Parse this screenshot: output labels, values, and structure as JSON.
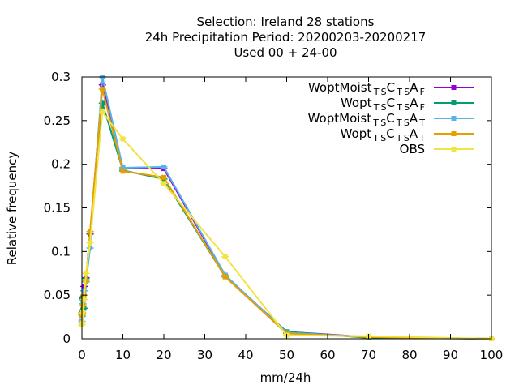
{
  "chart_data": {
    "type": "line",
    "title_lines": [
      "Selection: Ireland      28 stations",
      "24h Precipitation  Period: 20200203-20200217",
      "Used  00 + 24-00"
    ],
    "xlabel": "mm/24h",
    "ylabel": "Relative frequency",
    "xlim": [
      0,
      100
    ],
    "ylim": [
      0,
      0.3
    ],
    "xticks": [
      0,
      10,
      20,
      30,
      40,
      50,
      60,
      70,
      80,
      90,
      100
    ],
    "yticks": [
      0,
      0.05,
      0.1,
      0.15,
      0.2,
      0.25,
      0.3
    ],
    "ytick_labels": [
      "0",
      "0.05",
      "0.1",
      "0.15",
      "0.2",
      "0.25",
      "0.3"
    ],
    "legend_position": "top-right",
    "grid": false,
    "series": [
      {
        "name": "WoptMoist_TS C_TS A_F",
        "legend": {
          "base": "WoptMoist",
          "parts": [
            [
              "TS",
              "sub"
            ],
            [
              "C",
              "base"
            ],
            [
              "TS",
              "sub"
            ],
            [
              "A",
              "base"
            ],
            [
              "F",
              "sub"
            ]
          ]
        },
        "color": "#9400d3",
        "x": [
          0,
          0.1,
          0.25,
          0.5,
          1,
          2,
          5,
          10,
          20,
          35,
          50,
          70,
          100
        ],
        "y": [
          0.027,
          0.029,
          0.047,
          0.06,
          0.07,
          0.12,
          0.291,
          0.196,
          0.195,
          0.072,
          0.008,
          0.002,
          0.0
        ]
      },
      {
        "name": "Wopt_TS C_TS A_F",
        "legend": {
          "base": "Wopt",
          "parts": [
            [
              "TS",
              "sub"
            ],
            [
              "C",
              "base"
            ],
            [
              "TS",
              "sub"
            ],
            [
              "A",
              "base"
            ],
            [
              "F",
              "sub"
            ]
          ]
        },
        "color": "#009e73",
        "x": [
          0,
          0.1,
          0.25,
          0.5,
          1,
          2,
          5,
          10,
          20,
          35,
          50,
          70,
          100
        ],
        "y": [
          0.03,
          0.046,
          0.033,
          0.035,
          0.069,
          0.121,
          0.27,
          0.193,
          0.183,
          0.071,
          0.008,
          0.001,
          0.0
        ]
      },
      {
        "name": "WoptMoist_TS C_TS A_T",
        "legend": {
          "base": "WoptMoist",
          "parts": [
            [
              "TS",
              "sub"
            ],
            [
              "C",
              "base"
            ],
            [
              "TS",
              "sub"
            ],
            [
              "A",
              "base"
            ],
            [
              "T",
              "sub"
            ]
          ]
        },
        "color": "#56b4e9",
        "x": [
          0,
          0.1,
          0.25,
          0.5,
          1,
          2,
          5,
          10,
          20,
          35,
          50,
          70,
          100
        ],
        "y": [
          0.02,
          0.026,
          0.04,
          0.055,
          0.065,
          0.104,
          0.3,
          0.196,
          0.197,
          0.073,
          0.007,
          0.002,
          0.0
        ]
      },
      {
        "name": "Wopt_TS C_TS A_T",
        "legend": {
          "base": "Wopt",
          "parts": [
            [
              "TS",
              "sub"
            ],
            [
              "C",
              "base"
            ],
            [
              "TS",
              "sub"
            ],
            [
              "A",
              "base"
            ],
            [
              "T",
              "sub"
            ]
          ]
        },
        "color": "#e69f00",
        "x": [
          0,
          0.1,
          0.25,
          0.5,
          1,
          2,
          5,
          10,
          20,
          35,
          50,
          70,
          100
        ],
        "y": [
          0.027,
          0.03,
          0.038,
          0.05,
          0.066,
          0.123,
          0.286,
          0.192,
          0.185,
          0.071,
          0.006,
          0.002,
          0.0
        ]
      },
      {
        "name": "OBS",
        "legend": {
          "base": "OBS",
          "parts": []
        },
        "color": "#f0e442",
        "x": [
          0,
          0.1,
          0.25,
          0.5,
          1,
          2,
          5,
          10,
          20,
          35,
          50,
          70,
          100
        ],
        "y": [
          0.016,
          0.018,
          0.03,
          0.045,
          0.075,
          0.11,
          0.26,
          0.229,
          0.178,
          0.094,
          0.004,
          0.003,
          0.0
        ]
      }
    ]
  }
}
